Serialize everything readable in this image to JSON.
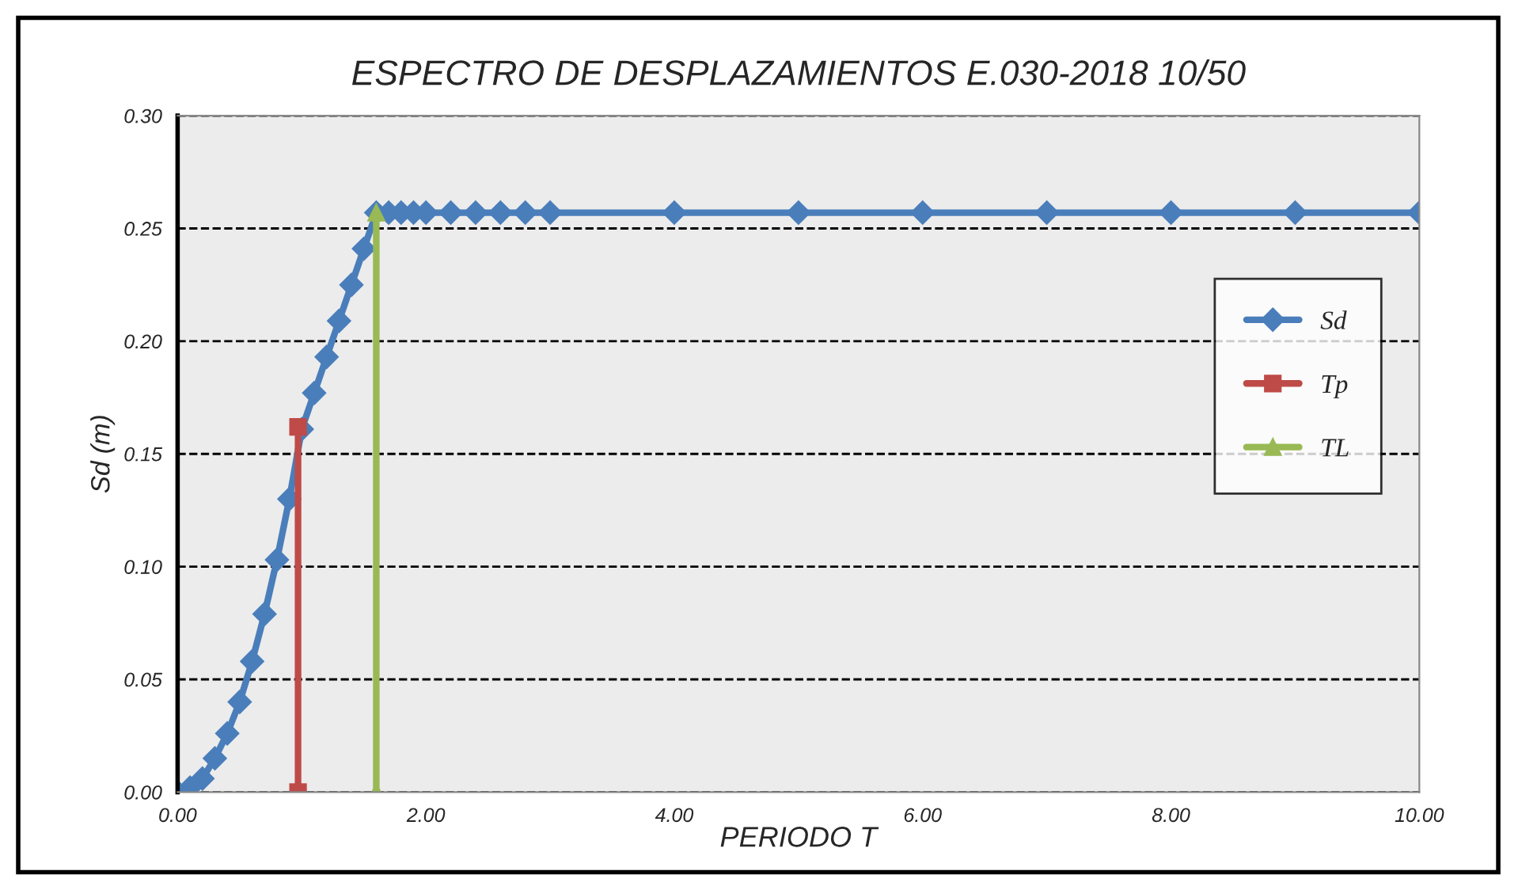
{
  "chart_data": {
    "type": "line",
    "title": "ESPECTRO DE DESPLAZAMIENTOS E.030-2018 10/50",
    "xlabel": "PERIODO T",
    "ylabel": "Sd (m)",
    "xlim": [
      0,
      10
    ],
    "ylim": [
      0,
      0.3
    ],
    "xticks": [
      {
        "value": 0,
        "label": "0.00"
      },
      {
        "value": 2,
        "label": "2.00"
      },
      {
        "value": 4,
        "label": "4.00"
      },
      {
        "value": 6,
        "label": "6.00"
      },
      {
        "value": 8,
        "label": "8.00"
      },
      {
        "value": 10,
        "label": "10.00"
      }
    ],
    "yticks": [
      {
        "value": 0,
        "label": "0.00"
      },
      {
        "value": 0.05,
        "label": "0.05"
      },
      {
        "value": 0.1,
        "label": "0.10"
      },
      {
        "value": 0.15,
        "label": "0.15"
      },
      {
        "value": 0.2,
        "label": "0.20"
      },
      {
        "value": 0.25,
        "label": "0.25"
      },
      {
        "value": 0.3,
        "label": "0.30"
      }
    ],
    "grid": "y",
    "legend": "right",
    "series": [
      {
        "name": "Sd",
        "color": "#4a7ebb",
        "marker": "diamond",
        "x": [
          0,
          0.1,
          0.2,
          0.3,
          0.4,
          0.5,
          0.6,
          0.7,
          0.8,
          0.9,
          1.0,
          1.1,
          1.2,
          1.3,
          1.4,
          1.5,
          1.6,
          1.7,
          1.8,
          1.9,
          2.0,
          2.2,
          2.4,
          2.6,
          2.8,
          3.0,
          4,
          5,
          6,
          7,
          8,
          9,
          10
        ],
        "values": [
          0,
          0.002,
          0.006,
          0.015,
          0.026,
          0.04,
          0.058,
          0.079,
          0.103,
          0.13,
          0.161,
          0.177,
          0.193,
          0.209,
          0.225,
          0.241,
          0.257,
          0.257,
          0.257,
          0.257,
          0.257,
          0.257,
          0.257,
          0.257,
          0.257,
          0.257,
          0.257,
          0.257,
          0.257,
          0.257,
          0.257,
          0.257,
          0.257
        ]
      },
      {
        "name": "Tp",
        "color": "#be4b48",
        "marker": "square",
        "x": [
          0.97,
          0.97
        ],
        "values": [
          0,
          0.162
        ]
      },
      {
        "name": "TL",
        "color": "#98b954",
        "marker": "triangle",
        "x": [
          1.6,
          1.6
        ],
        "values": [
          0,
          0.257
        ]
      }
    ]
  }
}
